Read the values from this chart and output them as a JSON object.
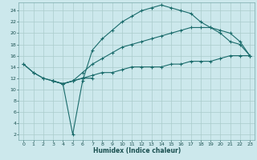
{
  "xlabel": "Humidex (Indice chaleur)",
  "bg_color": "#cce8ec",
  "grid_color": "#aacccc",
  "line_color": "#1a6b6b",
  "line1_x": [
    0,
    1,
    2,
    3,
    4,
    5,
    6,
    7
  ],
  "line1_y": [
    14.5,
    13.0,
    12.0,
    11.5,
    11.0,
    11.5,
    12.0,
    12.0
  ],
  "line2_x": [
    0,
    1,
    2,
    3,
    4,
    5,
    6,
    7,
    8,
    9,
    10,
    11,
    12,
    13,
    14,
    15,
    16,
    17,
    18,
    19,
    20,
    21,
    22,
    23
  ],
  "line2_y": [
    14.5,
    13.0,
    12.0,
    11.5,
    11.0,
    2.0,
    11.5,
    17.0,
    19.0,
    20.5,
    22.0,
    23.0,
    24.0,
    24.5,
    25.0,
    24.5,
    24.0,
    23.5,
    22.0,
    21.0,
    20.0,
    18.5,
    18.0,
    16.0
  ],
  "line3_x": [
    3,
    4,
    5,
    6,
    7,
    8,
    9,
    10,
    11,
    12,
    13,
    14,
    15,
    16,
    17,
    18,
    19,
    20,
    21,
    22,
    23
  ],
  "line3_y": [
    11.5,
    11.0,
    11.5,
    13.0,
    14.5,
    15.5,
    16.5,
    17.5,
    18.0,
    18.5,
    19.0,
    19.5,
    20.0,
    20.5,
    21.0,
    21.0,
    21.0,
    20.5,
    20.0,
    18.5,
    16.0
  ],
  "line4_x": [
    3,
    4,
    5,
    6,
    7,
    8,
    9,
    10,
    11,
    12,
    13,
    14,
    15,
    16,
    17,
    18,
    19,
    20,
    21,
    22,
    23
  ],
  "line4_y": [
    11.5,
    11.0,
    11.5,
    12.0,
    12.5,
    13.0,
    13.0,
    13.5,
    14.0,
    14.0,
    14.0,
    14.0,
    14.5,
    14.5,
    15.0,
    15.0,
    15.0,
    15.5,
    16.0,
    16.0,
    16.0
  ],
  "xlim": [
    -0.5,
    23.5
  ],
  "ylim": [
    1,
    25.5
  ],
  "yticks": [
    2,
    4,
    6,
    8,
    10,
    12,
    14,
    16,
    18,
    20,
    22,
    24
  ],
  "xticks": [
    0,
    1,
    2,
    3,
    4,
    5,
    6,
    7,
    8,
    9,
    10,
    11,
    12,
    13,
    14,
    15,
    16,
    17,
    18,
    19,
    20,
    21,
    22,
    23
  ]
}
